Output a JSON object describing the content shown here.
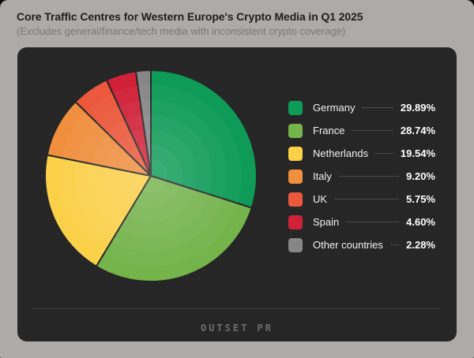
{
  "header": {
    "title": "Core Traffic Centres for Western Europe's Crypto Media in Q1 2025",
    "subtitle": "(Excludes general/finance/tech media with inconsistent crypto coverage)"
  },
  "footer": {
    "brand": "OUTSET PR"
  },
  "colors": {
    "page_bg": "#acabaa",
    "panel_bg": "#262626",
    "slice_border": "#262626",
    "leader_line": "#4a4a4a",
    "footer_divider": "#3a3a3a",
    "legend_text": "#f2f2f2",
    "logo_text": "#6e6e6e"
  },
  "chart_data": {
    "type": "pie",
    "title": "Core Traffic Centres for Western Europe's Crypto Media in Q1 2025",
    "subtitle": "(Excludes general/finance/tech media with inconsistent crypto coverage)",
    "unit": "%",
    "start_angle_deg": 0,
    "direction": "clockwise",
    "legend_position": "right",
    "ring_shading": true,
    "slices": [
      {
        "label": "Germany",
        "value": 29.89,
        "display": "29.89%",
        "color": "#0d9b57"
      },
      {
        "label": "France",
        "value": 28.74,
        "display": "28.74%",
        "color": "#74b44b"
      },
      {
        "label": "Netherlands",
        "value": 19.54,
        "display": "19.54%",
        "color": "#fbd14a"
      },
      {
        "label": "Italy",
        "value": 9.2,
        "display": "9.20%",
        "color": "#f0903e"
      },
      {
        "label": "UK",
        "value": 5.75,
        "display": "5.75%",
        "color": "#ec583b"
      },
      {
        "label": "Spain",
        "value": 4.6,
        "display": "4.60%",
        "color": "#d12138"
      },
      {
        "label": "Other countries",
        "value": 2.28,
        "display": "2.28%",
        "color": "#868686"
      }
    ]
  }
}
